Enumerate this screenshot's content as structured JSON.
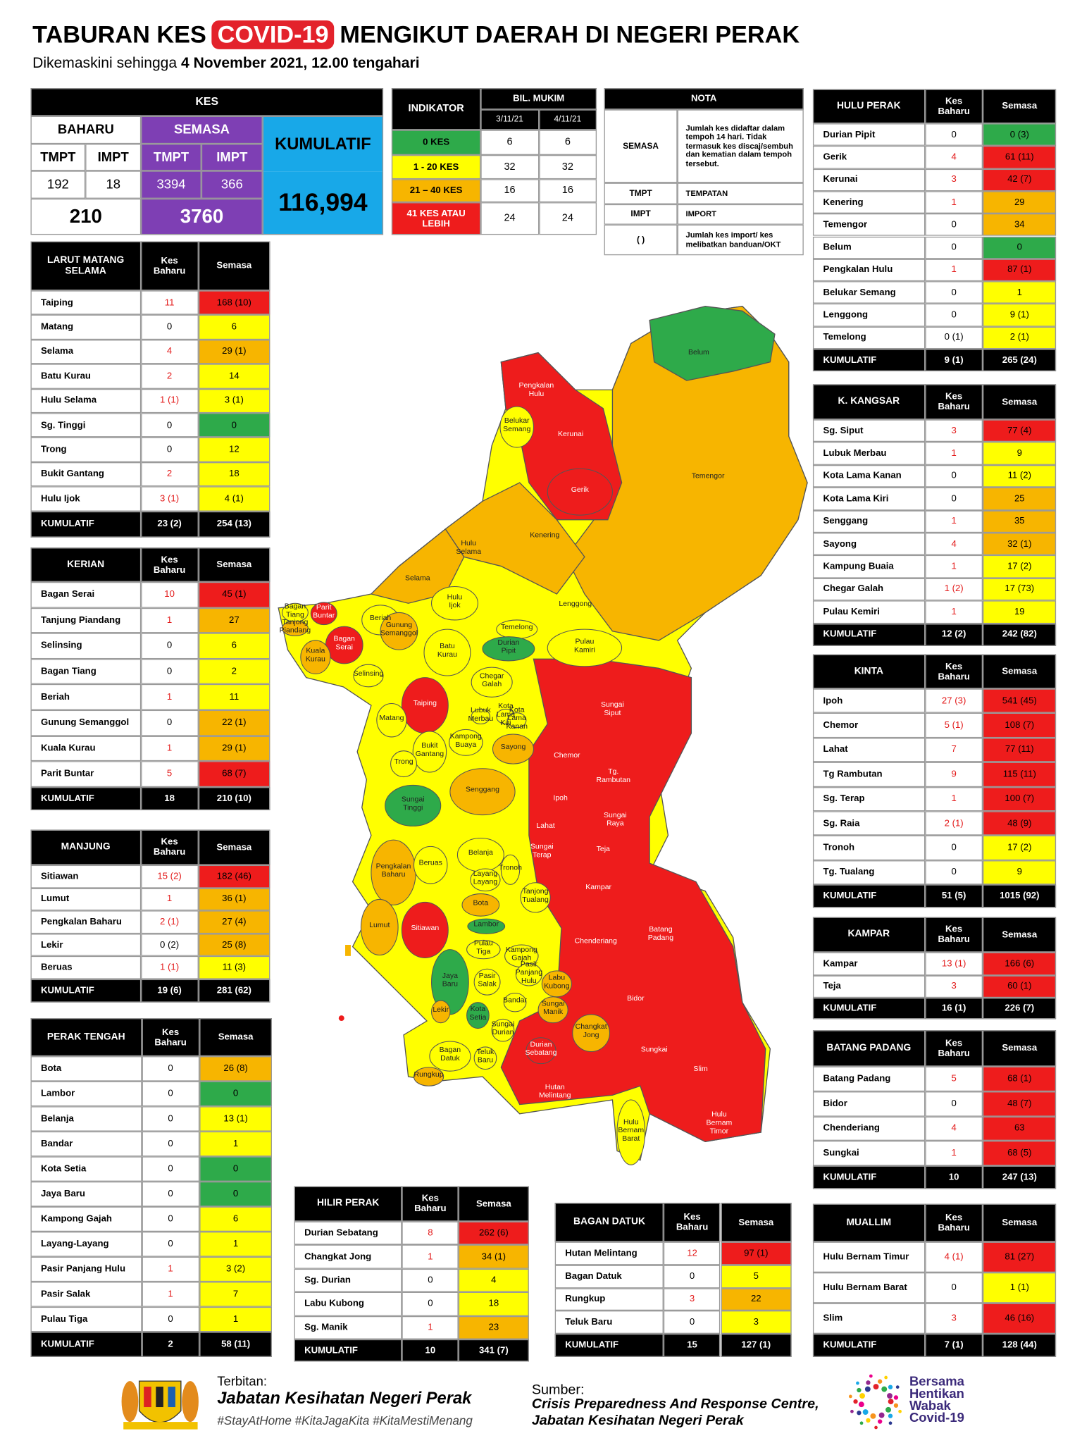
{
  "header": {
    "title_start": "TABURAN KES",
    "title_highlight": "COVID-19",
    "title_end": "MENGIKUT DAERAH DI NEGERI PERAK",
    "updated_prefix": "Dikemaskini sehingga",
    "updated_date": "4 November 2021, 12.00 tengahari"
  },
  "kes": {
    "title": "KES",
    "baharu": "BAHARU",
    "semasa": "SEMASA",
    "kumulatif_label": "KUMULATIF",
    "columns": [
      "TMPT",
      "IMPT",
      "TMPT",
      "IMPT"
    ],
    "values": [
      "192",
      "18",
      "3394",
      "366"
    ],
    "baharu_total": "210",
    "semasa_total": "3760",
    "kumulatif": "116,994"
  },
  "indicators": {
    "header": "INDIKATOR",
    "count_header": "BIL. MUKIM",
    "dates": [
      "3/11/21",
      "4/11/21"
    ],
    "rows": [
      [
        "0 KES",
        "6",
        "6"
      ],
      [
        "1 - 20 KES",
        "32",
        "32"
      ],
      [
        "21 – 40 KES",
        "16",
        "16"
      ],
      [
        "41 KES ATAU LEBIH",
        "24",
        "24"
      ]
    ]
  },
  "nota": {
    "title": "NOTA",
    "rows": [
      [
        "SEMASA",
        "Jumlah kes didaftar dalam tempoh 14 hari. Tidak termasuk kes discaj/sembuh dan kematian dalam tempoh tersebut."
      ],
      [
        "TMPT",
        "TEMPATAN"
      ],
      [
        "IMPT",
        "IMPORT"
      ],
      [
        "(     )",
        "Jumlah kes import/ kes melibatkan banduan/OKT"
      ]
    ]
  },
  "districts": [
    {
      "name": "LARUT MATANG SELAMA",
      "col_new": "Kes Baharu",
      "col_active": "Semasa",
      "rows": [
        [
          "Taiping",
          "11",
          "168 (10)"
        ],
        [
          "Matang",
          "0",
          "6"
        ],
        [
          "Selama",
          "4",
          "29 (1)"
        ],
        [
          "Batu Kurau",
          "2",
          "14"
        ],
        [
          "Hulu Selama",
          "1 (1)",
          "3 (1)"
        ],
        [
          "Sg. Tinggi",
          "0",
          "0"
        ],
        [
          "Trong",
          "0",
          "12"
        ],
        [
          "Bukit Gantang",
          "2",
          "18"
        ],
        [
          "Hulu Ijok",
          "3 (1)",
          "4 (1)"
        ]
      ],
      "total_label": "KUMULATIF",
      "total": [
        "23 (2)",
        "254 (13)"
      ]
    },
    {
      "name": "KERIAN",
      "col_new": "Kes Baharu",
      "col_active": "Semasa",
      "rows": [
        [
          "Bagan Serai",
          "10",
          "45 (1)"
        ],
        [
          "Tanjung Piandang",
          "1",
          "27"
        ],
        [
          "Selinsing",
          "0",
          "6"
        ],
        [
          "Bagan Tiang",
          "0",
          "2"
        ],
        [
          "Beriah",
          "1",
          "11"
        ],
        [
          "Gunung Semanggol",
          "0",
          "22 (1)"
        ],
        [
          "Kuala Kurau",
          "1",
          "29 (1)"
        ],
        [
          "Parit Buntar",
          "5",
          "68 (7)"
        ]
      ],
      "total_label": "KUMULATIF",
      "total": [
        "18",
        "210 (10)"
      ]
    },
    {
      "name": "MANJUNG",
      "col_new": "Kes Baharu",
      "col_active": "Semasa",
      "rows": [
        [
          "Sitiawan",
          "15 (2)",
          "182 (46)"
        ],
        [
          "Lumut",
          "1",
          "36 (1)"
        ],
        [
          "Pengkalan Baharu",
          "2 (1)",
          "27 (4)"
        ],
        [
          "Lekir",
          "0 (2)",
          "25 (8)"
        ],
        [
          "Beruas",
          "1 (1)",
          "11 (3)"
        ]
      ],
      "total_label": "KUMULATIF",
      "total": [
        "19 (6)",
        "281 (62)"
      ]
    },
    {
      "name": "PERAK TENGAH",
      "col_new": "Kes Baharu",
      "col_active": "Semasa",
      "rows": [
        [
          "Bota",
          "0",
          "26 (8)"
        ],
        [
          "Lambor",
          "0",
          "0"
        ],
        [
          "Belanja",
          "0",
          "13 (1)"
        ],
        [
          "Bandar",
          "0",
          "1"
        ],
        [
          "Kota Setia",
          "0",
          "0"
        ],
        [
          "Jaya Baru",
          "0",
          "0"
        ],
        [
          "Kampong Gajah",
          "0",
          "6"
        ],
        [
          "Layang-Layang",
          "0",
          "1"
        ],
        [
          "Pasir Panjang Hulu",
          "1",
          "3 (2)"
        ],
        [
          "Pasir Salak",
          "1",
          "7"
        ],
        [
          "Pulau Tiga",
          "0",
          "1"
        ]
      ],
      "total_label": "KUMULATIF",
      "total": [
        "2",
        "58 (11)"
      ]
    },
    {
      "name": "HULU PERAK",
      "col_new": "Kes Baharu",
      "col_active": "Semasa",
      "rows": [
        [
          "Durian Pipit",
          "0",
          "0 (3)"
        ],
        [
          "Gerik",
          "4",
          "61 (11)"
        ],
        [
          "Kerunai",
          "3",
          "42 (7)"
        ],
        [
          "Kenering",
          "1",
          "29"
        ],
        [
          "Temengor",
          "0",
          "34"
        ],
        [
          "Belum",
          "0",
          "0"
        ],
        [
          "Pengkalan Hulu",
          "1",
          "87 (1)"
        ],
        [
          "Belukar Semang",
          "0",
          "1"
        ],
        [
          "Lenggong",
          "0",
          "9 (1)"
        ],
        [
          "Temelong",
          "0 (1)",
          "2 (1)"
        ]
      ],
      "total_label": "KUMULATIF",
      "total": [
        "9 (1)",
        "265 (24)"
      ]
    },
    {
      "name": "K. KANGSAR",
      "col_new": "Kes Baharu",
      "col_active": "Semasa",
      "rows": [
        [
          "Sg. Siput",
          "3",
          "77 (4)"
        ],
        [
          "Lubuk Merbau",
          "1",
          "9"
        ],
        [
          "Kota Lama Kanan",
          "0",
          "11 (2)"
        ],
        [
          "Kota Lama Kiri",
          "0",
          "25"
        ],
        [
          "Senggang",
          "1",
          "35"
        ],
        [
          "Sayong",
          "4",
          "32 (1)"
        ],
        [
          "Kampung Buaia",
          "1",
          "17 (2)"
        ],
        [
          "Chegar Galah",
          "1 (2)",
          "17 (73)"
        ],
        [
          "Pulau Kemiri",
          "1",
          "19"
        ]
      ],
      "total_label": "KUMULATIF",
      "total": [
        "12 (2)",
        "242 (82)"
      ]
    },
    {
      "name": "KINTA",
      "col_new": "Kes Baharu",
      "col_active": "Semasa",
      "rows": [
        [
          "Ipoh",
          "27 (3)",
          "541 (45)"
        ],
        [
          "Chemor",
          "5 (1)",
          "108 (7)"
        ],
        [
          "Lahat",
          "7",
          "77 (11)"
        ],
        [
          "Tg Rambutan",
          "9",
          "115 (11)"
        ],
        [
          "Sg. Terap",
          "1",
          "100 (7)"
        ],
        [
          "Sg. Raia",
          "2 (1)",
          "48 (9)"
        ],
        [
          "Tronoh",
          "0",
          "17 (2)"
        ],
        [
          "Tg. Tualang",
          "0",
          "9"
        ]
      ],
      "total_label": "KUMULATIF",
      "total": [
        "51 (5)",
        "1015 (92)"
      ]
    },
    {
      "name": "KAMPAR",
      "col_new": "Kes Baharu",
      "col_active": "Semasa",
      "rows": [
        [
          "Kampar",
          "13 (1)",
          "166 (6)"
        ],
        [
          "Teja",
          "3",
          "60 (1)"
        ]
      ],
      "total_label": "KUMULATIF",
      "total": [
        "16 (1)",
        "226 (7)"
      ]
    },
    {
      "name": "BATANG PADANG",
      "col_new": "Kes Baharu",
      "col_active": "Semasa",
      "rows": [
        [
          "Batang Padang",
          "5",
          "68 (1)"
        ],
        [
          "Bidor",
          "0",
          "48 (7)"
        ],
        [
          "Chenderiang",
          "4",
          "63"
        ],
        [
          "Sungkai",
          "1",
          "68 (5)"
        ]
      ],
      "total_label": "KUMULATIF",
      "total": [
        "10",
        "247 (13)"
      ]
    },
    {
      "name": "MUALLIM",
      "col_new": "Kes Baharu",
      "col_active": "Semasa",
      "rows": [
        [
          "Hulu Bernam Timur",
          "4 (1)",
          "81 (27)"
        ],
        [
          "Hulu Bernam Barat",
          "0",
          "1 (1)"
        ],
        [
          "Slim",
          "3",
          "46 (16)"
        ]
      ],
      "total_label": "KUMULATIF",
      "total": [
        "7 (1)",
        "128 (44)"
      ]
    },
    {
      "name": "HILIR PERAK",
      "col_new": "Kes Baharu",
      "col_active": "Semasa",
      "rows": [
        [
          "Durian Sebatang",
          "8",
          "262 (6)"
        ],
        [
          "Changkat Jong",
          "1",
          "34 (1)"
        ],
        [
          "Sg. Durian",
          "0",
          "4"
        ],
        [
          "Labu Kubong",
          "0",
          "18"
        ],
        [
          "Sg. Manik",
          "1",
          "23"
        ]
      ],
      "total_label": "KUMULATIF",
      "total": [
        "10",
        "341 (7)"
      ]
    },
    {
      "name": "BAGAN DATUK",
      "col_new": "Kes Baharu",
      "col_active": "Semasa",
      "rows": [
        [
          "Hutan Melintang",
          "12",
          "97 (1)"
        ],
        [
          "Bagan Datuk",
          "0",
          "5"
        ],
        [
          "Rungkup",
          "3",
          "22"
        ],
        [
          "Teluk Baru",
          "0",
          "3"
        ]
      ],
      "total_label": "KUMULATIF",
      "total": [
        "15",
        "127 (1)"
      ]
    }
  ],
  "map": {
    "labels": [
      "Belum",
      "Pengkalan Hulu",
      "Belukar Semang",
      "Kerunai",
      "Gerik",
      "Temengor",
      "Kenering",
      "Hulu Selama",
      "Selama",
      "Hulu Ijok",
      "Lenggong",
      "Temelong",
      "Bagan Tiang",
      "Parit Buntar",
      "Tanjong Piandang",
      "Beriah",
      "Bagan Serai",
      "Gunung Semanggol",
      "Durian Pipit",
      "Batu Kurau",
      "Pulau Kamiri",
      "Kuala Kurau",
      "Selinsing",
      "Chegar Galah",
      "Taiping",
      "Sungai Siput",
      "Lubuk Merbau",
      "Kota Lama Kiri",
      "Kota Lama Kanan",
      "Matang",
      "Kampong Buaya",
      "Sayong",
      "Bukit Gantang",
      "Trong",
      "Chemor",
      "Tg. Rambutan",
      "Senggang",
      "Sungai Tinggi",
      "Ipoh",
      "Sungai Raya",
      "Lahat",
      "Sungai Terap",
      "Teja",
      "Belanja",
      "Pengkalan Baharu",
      "Beruas",
      "Tronoh",
      "Layang Layang",
      "Kampar",
      "Tanjong Tualang",
      "Bota",
      "Lumut",
      "Sitiawan",
      "Lambor",
      "Batang Padang",
      "Chenderiang",
      "Pulau Tiga",
      "Kampong Gajah",
      "Pasir Panjang Hulu",
      "Jaya Baru",
      "Pasir Salak",
      "Labu Kubong",
      "Bidor",
      "Bandar",
      "Sungai Manik",
      "Lekir",
      "Kota Setia",
      "Sungai Durian",
      "Changkat Jong",
      "Sungkai",
      "Durian Sebatang",
      "Bagan Datuk",
      "Teluk Baru",
      "Slim",
      "Rungkup",
      "Hutan Melintang",
      "Hulu Bernam Barat",
      "Hulu Bernam Timor"
    ]
  },
  "footer": {
    "published_label": "Terbitan:",
    "publisher": "Jabatan Kesihatan Negeri Perak",
    "hashtags": "#StayAtHome #KitaJagaKita #KitaMestiMenang",
    "source_label": "Sumber:",
    "source_line1": "Crisis Preparedness And Response Centre,",
    "source_line2": "Jabatan Kesihatan Negeri Perak",
    "logo_lines": [
      "Bersama",
      "Hentikan",
      "Wabak",
      "Covid-19"
    ]
  }
}
